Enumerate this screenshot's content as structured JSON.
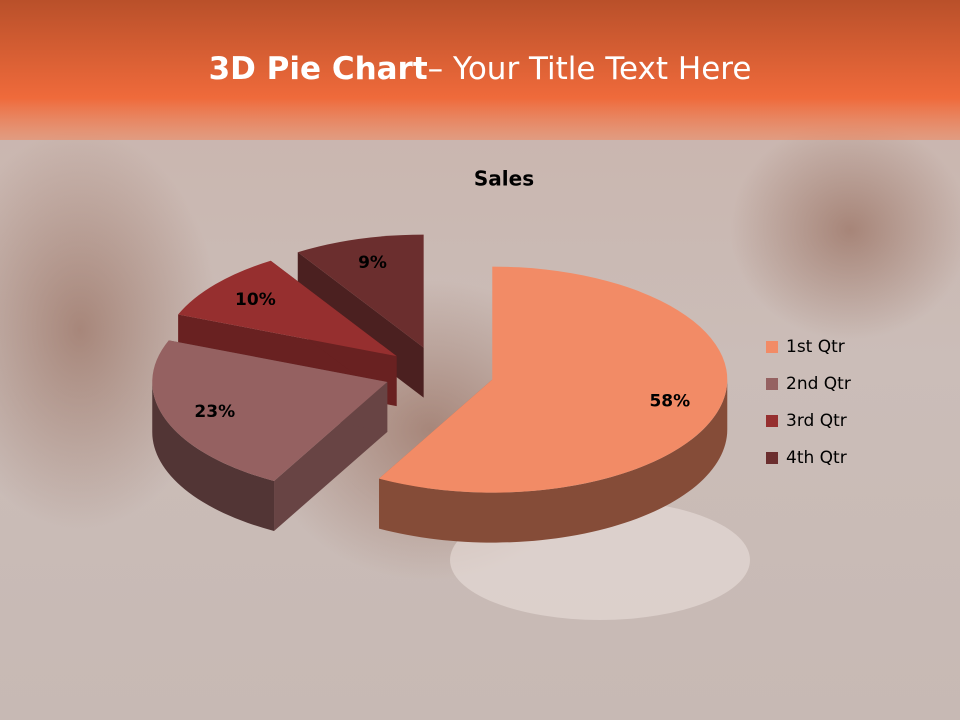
{
  "slide_title": {
    "bold": "3D Pie Chart",
    "rest": "– Your Title Text Here"
  },
  "chart_data": {
    "type": "pie",
    "title": "Sales",
    "categories": [
      "1st Qtr",
      "2nd Qtr",
      "3rd Qtr",
      "4th Qtr"
    ],
    "values": [
      58,
      23,
      10,
      9
    ],
    "value_labels": [
      "58%",
      "23%",
      "10%",
      "9%"
    ],
    "colors": [
      "#f28b66",
      "#956161",
      "#962f2f",
      "#6b2e2e"
    ],
    "legend": "right"
  }
}
